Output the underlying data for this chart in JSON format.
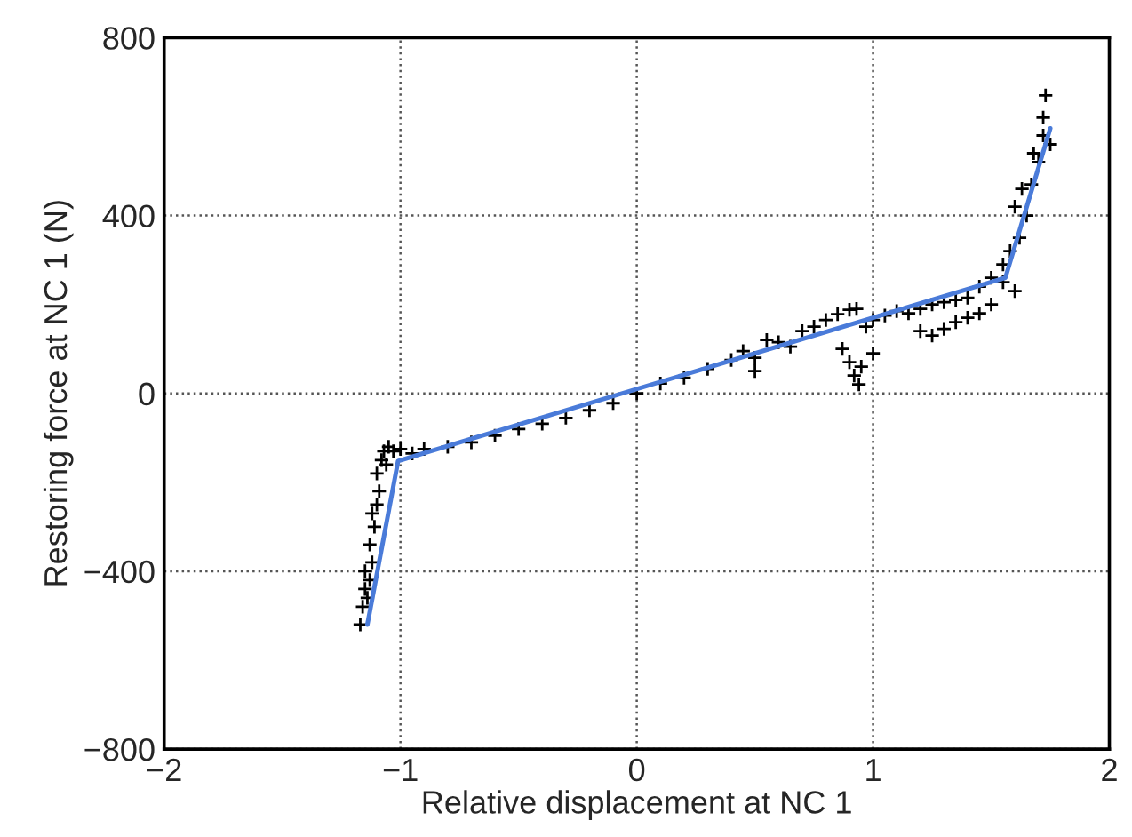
{
  "chart_data": {
    "type": "scatter",
    "xlabel": "Relative displacement at NC 1",
    "ylabel": "Restoring force at NC 1 (N)",
    "xlim": [
      -2,
      2
    ],
    "xticks": [
      -2,
      -1,
      0,
      1,
      2
    ],
    "ylim": [
      -800,
      800
    ],
    "yticks": [
      -800,
      -400,
      0,
      400,
      800
    ],
    "grid": true,
    "legend": false,
    "series": [
      {
        "marker": "cross",
        "color": "#000000",
        "x": [
          -1.16,
          -1.15,
          -1.17,
          -1.14,
          -1.13,
          -1.15,
          -1.12,
          -1.13,
          -1.11,
          -1.12,
          -1.1,
          -1.09,
          -1.1,
          -1.08,
          -1.07,
          -1.05,
          -1.06,
          -1.03,
          -1.0,
          -0.95,
          -0.9,
          -0.8,
          -0.7,
          -0.6,
          -0.5,
          -0.4,
          -0.3,
          -0.2,
          -0.1,
          0,
          0.1,
          0.2,
          0.3,
          0.4,
          0.45,
          0.5,
          0.5,
          0.55,
          0.6,
          0.65,
          0.7,
          0.75,
          0.8,
          0.85,
          0.9,
          0.93,
          0.87,
          0.9,
          0.92,
          0.94,
          0.95,
          1.0,
          0.97,
          1.0,
          1.05,
          1.1,
          1.15,
          1.2,
          1.25,
          1.3,
          1.35,
          1.4,
          1.2,
          1.25,
          1.3,
          1.35,
          1.4,
          1.45,
          1.5,
          1.45,
          1.5,
          1.55,
          1.55,
          1.6,
          1.58,
          1.62,
          1.6,
          1.65,
          1.63,
          1.67,
          1.68,
          1.7,
          1.72,
          1.72,
          1.73,
          1.75
        ],
        "values": [
          -480,
          -440,
          -520,
          -460,
          -420,
          -400,
          -380,
          -340,
          -300,
          -270,
          -250,
          -220,
          -180,
          -150,
          -130,
          -120,
          -160,
          -130,
          -125,
          -135,
          -125,
          -120,
          -110,
          -95,
          -80,
          -68,
          -55,
          -38,
          -22,
          0,
          22,
          35,
          55,
          75,
          95,
          80,
          50,
          120,
          115,
          105,
          140,
          150,
          165,
          178,
          188,
          190,
          100,
          70,
          40,
          20,
          60,
          90,
          150,
          165,
          175,
          185,
          180,
          190,
          200,
          205,
          210,
          215,
          140,
          130,
          145,
          160,
          170,
          180,
          200,
          240,
          260,
          250,
          290,
          230,
          320,
          350,
          420,
          400,
          460,
          470,
          540,
          520,
          580,
          620,
          670,
          560
        ]
      },
      {
        "type": "line",
        "marker": "none",
        "line_style": "solid",
        "color": "#4a7bd9",
        "x": [
          -1.14,
          -1.01,
          1.56,
          1.75
        ],
        "values": [
          -520,
          -152,
          260,
          596
        ]
      }
    ]
  }
}
